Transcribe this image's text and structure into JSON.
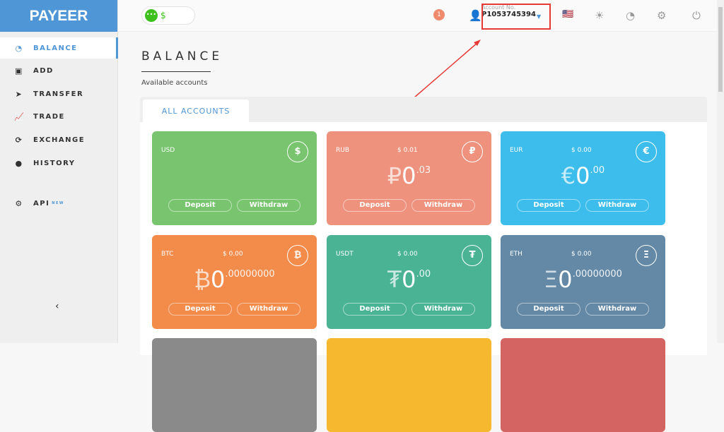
{
  "sidebar": {
    "logo": "PAYEER",
    "items": [
      {
        "label": "BALANCE",
        "icon": "dashboard-icon"
      },
      {
        "label": "ADD",
        "icon": "plus-square-icon"
      },
      {
        "label": "TRANSFER",
        "icon": "send-icon"
      },
      {
        "label": "TRADE",
        "icon": "chart-icon"
      },
      {
        "label": "EXCHANGE",
        "icon": "exchange-icon"
      },
      {
        "label": "HISTORY",
        "icon": "clock-icon"
      },
      {
        "label": "API",
        "icon": "gears-icon",
        "badge": "NEW"
      }
    ]
  },
  "header": {
    "balance": "$",
    "notifications": "1",
    "account_label": "Account No.",
    "account_number": "P1053745394"
  },
  "main": {
    "title": "BALANCE",
    "subtitle": "Available accounts",
    "tab": "ALL ACCOUNTS"
  },
  "cards": [
    {
      "currency": "USD",
      "usd": "",
      "symbol": "$",
      "int": "",
      "dec": "",
      "color": "#78c46f"
    },
    {
      "currency": "RUB",
      "usd": "$ 0.01",
      "symbol": "₽",
      "int": "0",
      "dec": ".03",
      "color": "#ee927e"
    },
    {
      "currency": "EUR",
      "usd": "$ 0.00",
      "symbol": "€",
      "int": "0",
      "dec": ".00",
      "color": "#3dbdec"
    },
    {
      "currency": "BTC",
      "usd": "$ 0.00",
      "symbol": "₿",
      "int": "0",
      "dec": ".00000000",
      "color": "#f38b4b"
    },
    {
      "currency": "USDT",
      "usd": "$ 0.00",
      "symbol": "₮",
      "int": "0",
      "dec": ".00",
      "color": "#4ab394"
    },
    {
      "currency": "ETH",
      "usd": "$ 0.00",
      "symbol": "Ξ",
      "int": "0",
      "dec": ".00000000",
      "color": "#6389a6"
    }
  ],
  "card_buttons": {
    "deposit": "Deposit",
    "withdraw": "Withdraw"
  },
  "partial_card_colors": [
    "#8a8a8a",
    "#f5b82e",
    "#d46461"
  ]
}
